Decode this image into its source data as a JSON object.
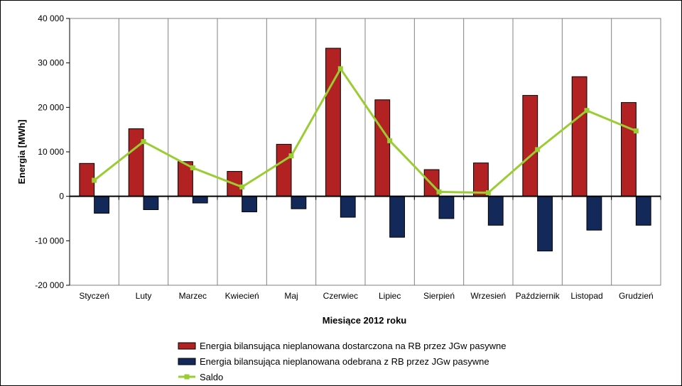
{
  "chart_data": {
    "type": "bar",
    "title": "",
    "xlabel": "Miesiące 2012 roku",
    "ylabel": "Energia [MWh]",
    "ylim": [
      -20000,
      40000
    ],
    "yticks": [
      40000,
      30000,
      20000,
      10000,
      0,
      -10000,
      -20000
    ],
    "ytick_labels": [
      "40 000",
      "30 000",
      "20 000",
      "10 000",
      "0",
      "-10 000",
      "-20 000"
    ],
    "grid": true,
    "legend_position": "bottom",
    "categories": [
      "Styczeń",
      "Luty",
      "Marzec",
      "Kwiecień",
      "Maj",
      "Czerwiec",
      "Lipiec",
      "Sierpień",
      "Wrzesień",
      "Październik",
      "Listopad",
      "Grudzień"
    ],
    "series": [
      {
        "name": "Energia bilansująca nieplanowana dostarczona na RB przez JGw pasywne",
        "type": "bar",
        "color": "#B22222",
        "values": [
          7400,
          15200,
          7800,
          5600,
          11700,
          33300,
          21700,
          6000,
          7500,
          22700,
          26900,
          21100
        ]
      },
      {
        "name": "Energia bilansująca nieplanowana odebrana z RB przez JGw pasywne",
        "type": "bar",
        "color": "#13295A",
        "values": [
          -3800,
          -3000,
          -1500,
          -3500,
          -2800,
          -4700,
          -9200,
          -5000,
          -6500,
          -12300,
          -7600,
          -6500
        ]
      },
      {
        "name": "Saldo",
        "type": "line",
        "color": "#9ACD32",
        "values": [
          3600,
          12300,
          6400,
          2100,
          9100,
          28700,
          12500,
          1000,
          800,
          10500,
          19300,
          14700
        ]
      }
    ]
  }
}
